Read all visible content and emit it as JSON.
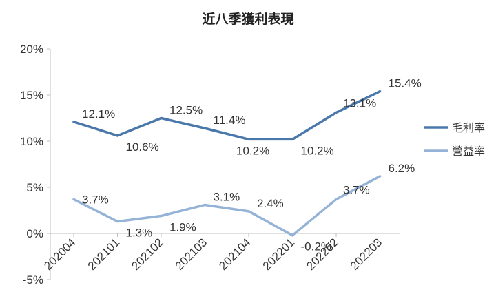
{
  "chart_data": {
    "type": "line",
    "title": "近八季獲利表現",
    "categories": [
      "202004",
      "202101",
      "202102",
      "202103",
      "202104",
      "202201",
      "202202",
      "202203"
    ],
    "y_ticks": [
      "20%",
      "15%",
      "10%",
      "5%",
      "0%",
      "-5%"
    ],
    "ylim": [
      -5,
      20
    ],
    "grid": false,
    "legend_position": "right",
    "series": [
      {
        "name": "毛利率",
        "color": "#4a78ab",
        "values": [
          12.1,
          10.6,
          12.5,
          11.4,
          10.2,
          10.2,
          13.1,
          15.4
        ],
        "labels": [
          "12.1%",
          "10.6%",
          "12.5%",
          "11.4%",
          "10.2%",
          "10.2%",
          "13.1%",
          "15.4%"
        ]
      },
      {
        "name": "營益率",
        "color": "#95b3d7",
        "values": [
          3.7,
          1.3,
          1.9,
          3.1,
          2.4,
          -0.2,
          3.7,
          6.2
        ],
        "labels": [
          "3.7%",
          "1.3%",
          "1.9%",
          "3.1%",
          "2.4%",
          "-0.2%",
          "3.7%",
          "6.2%"
        ]
      }
    ]
  }
}
